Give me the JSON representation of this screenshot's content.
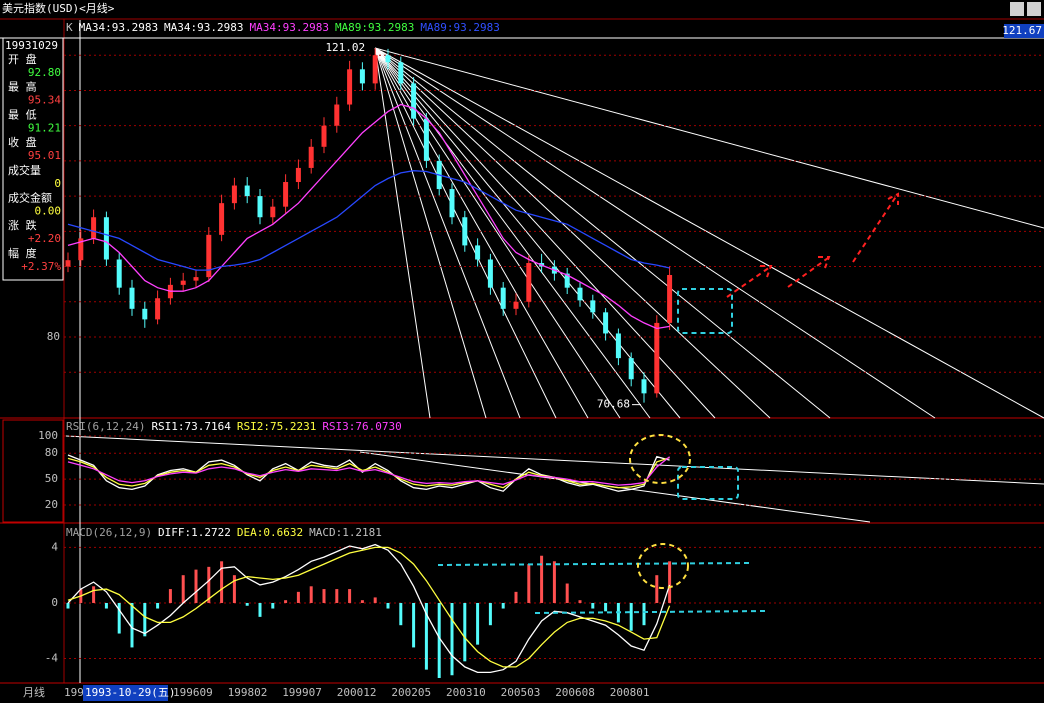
{
  "window": {
    "title": "美元指数(USD)<月线>"
  },
  "info_panel": {
    "date": "19931029",
    "rows": [
      {
        "label": "开 盘",
        "value": "92.80",
        "color": "#40ff40"
      },
      {
        "label": "最 高",
        "value": "95.34",
        "color": "#ff4040"
      },
      {
        "label": "最 低",
        "value": "91.21",
        "color": "#40ff40"
      },
      {
        "label": "收 盘",
        "value": "95.01",
        "color": "#ff4040"
      },
      {
        "label": "成交量",
        "value": "0",
        "color": "#ffff40"
      },
      {
        "label": "成交金额",
        "value": "0.00",
        "color": "#ffff40"
      },
      {
        "label": "涨 跌",
        "value": "+2.20",
        "color": "#ff4040"
      },
      {
        "label": "幅 度",
        "value": "+2.37%",
        "color": "#ff4040"
      }
    ]
  },
  "price_panel": {
    "type": "candlestick",
    "ylim": [
      68.5,
      125
    ],
    "yticks": [
      80
    ],
    "grid_levels": [
      75,
      85,
      90,
      95,
      100,
      105,
      110,
      115,
      120
    ],
    "up_color": "#ff3232",
    "down_color": "#54fcfc",
    "legend": [
      {
        "text": "K",
        "color": "#c0c0c0"
      },
      {
        "text": "MA34:93.2983",
        "color": "#ffffff"
      },
      {
        "text": "MA34:93.2983",
        "color": "#ffffff"
      },
      {
        "text": "MA34:93.2983",
        "color": "#ff40ff"
      },
      {
        "text": "MA89:93.2983",
        "color": "#40ff40"
      },
      {
        "text": "MA89:93.2983",
        "color": "#3050ff"
      }
    ],
    "current_label": "121.67",
    "high_label": "121.02",
    "low_label": "70.68",
    "ohlc": [
      [
        90.0,
        92.0,
        89.2,
        90.9
      ],
      [
        90.9,
        95.2,
        90.0,
        94
      ],
      [
        94,
        98.1,
        93.2,
        97
      ],
      [
        97,
        97.8,
        90.1,
        91
      ],
      [
        91,
        91.9,
        86.0,
        87
      ],
      [
        87,
        88.1,
        83.0,
        84
      ],
      [
        84,
        85.0,
        81.3,
        82.5
      ],
      [
        82.5,
        86.6,
        81.8,
        85.5
      ],
      [
        85.5,
        88.4,
        84.6,
        87.4
      ],
      [
        87.4,
        89.1,
        86.5,
        88
      ],
      [
        88,
        89.6,
        87.0,
        88.5
      ],
      [
        88.5,
        95.6,
        87.8,
        94.5
      ],
      [
        94.5,
        100.2,
        93.6,
        99
      ],
      [
        99,
        102.6,
        98.1,
        101.5
      ],
      [
        101.5,
        102.7,
        99.0,
        100
      ],
      [
        100,
        101.0,
        96.0,
        97
      ],
      [
        97,
        99.6,
        96.1,
        98.5
      ],
      [
        98.5,
        103.1,
        97.6,
        102
      ],
      [
        102,
        105.2,
        101.0,
        104
      ],
      [
        104,
        108.1,
        103.2,
        107
      ],
      [
        107,
        111.2,
        106.1,
        110
      ],
      [
        110,
        114.1,
        109.0,
        113
      ],
      [
        113,
        119.2,
        112.1,
        118
      ],
      [
        118,
        119.0,
        115.0,
        116
      ],
      [
        116,
        121.02,
        115.1,
        120
      ],
      [
        120,
        120.9,
        118.0,
        119
      ],
      [
        119,
        119.8,
        115.0,
        116
      ],
      [
        116,
        116.9,
        110.0,
        111
      ],
      [
        111,
        111.8,
        104.0,
        105
      ],
      [
        105,
        105.9,
        100.1,
        101
      ],
      [
        101,
        101.8,
        96.0,
        97
      ],
      [
        97,
        97.9,
        92.1,
        93
      ],
      [
        93,
        94.0,
        90.0,
        91
      ],
      [
        91,
        91.8,
        86.0,
        87
      ],
      [
        87,
        87.8,
        83.0,
        84
      ],
      [
        84,
        86.2,
        83.1,
        85
      ],
      [
        85,
        91.6,
        84.2,
        90.5
      ],
      [
        90.5,
        91.8,
        89.1,
        90
      ],
      [
        90,
        90.9,
        88.0,
        89
      ],
      [
        89,
        89.8,
        86.1,
        87
      ],
      [
        87,
        87.7,
        84.3,
        85.2
      ],
      [
        85.2,
        86.0,
        82.6,
        83.5
      ],
      [
        83.5,
        84.1,
        79.5,
        80.5
      ],
      [
        80.5,
        81.2,
        76.0,
        77
      ],
      [
        77,
        77.8,
        73.0,
        74
      ],
      [
        74,
        75.0,
        70.68,
        72
      ],
      [
        72,
        83.1,
        71.4,
        82
      ],
      [
        82,
        90.0,
        81.0,
        88.8
      ]
    ],
    "lines": [
      {
        "color": "#ff40ff",
        "values": [
          93,
          93.5,
          94,
          93.5,
          92,
          90,
          88,
          87,
          86.5,
          86.5,
          87,
          88,
          90,
          92,
          94,
          95,
          96,
          97.5,
          99,
          101,
          103,
          105,
          107,
          109,
          110.5,
          112,
          113,
          112.5,
          111,
          109,
          106,
          103,
          100,
          97,
          94,
          92,
          91,
          90.2,
          89.5,
          88.8,
          87.8,
          86.8,
          85.8,
          84.5,
          83,
          82,
          81.2,
          81.5
        ]
      },
      {
        "color": "#2848ff",
        "values": [
          96,
          95.5,
          95,
          94.5,
          94,
          93,
          92,
          91,
          90.5,
          90,
          89.5,
          89.5,
          90,
          90.2,
          90.5,
          91,
          92,
          93,
          94,
          95,
          96,
          97,
          98.5,
          100,
          101.5,
          102.5,
          103.3,
          103.6,
          103.5,
          103,
          102.5,
          102,
          101,
          100,
          99,
          98,
          97.5,
          97,
          96.5,
          96,
          95,
          94,
          93,
          92,
          91,
          90.5,
          90.2,
          89.8
        ]
      }
    ]
  },
  "rsi_panel": {
    "ylim": [
      1.4,
      117.4
    ],
    "yticks": [
      20,
      50,
      80,
      100
    ],
    "title": "RSI(6,12,24)",
    "series": [
      {
        "label": "RSI1:73.7164",
        "color": "#ffffff",
        "values": [
          78,
          72,
          66,
          48,
          40,
          38,
          42,
          55,
          60,
          62,
          58,
          70,
          72,
          66,
          55,
          48,
          62,
          68,
          60,
          70,
          66,
          64,
          72,
          58,
          68,
          60,
          48,
          40,
          38,
          42,
          40,
          44,
          48,
          40,
          36,
          50,
          62,
          55,
          52,
          46,
          42,
          44,
          40,
          36,
          38,
          42,
          76,
          72
        ]
      },
      {
        "label": "RSI2:75.2231",
        "color": "#ffff40",
        "values": [
          74,
          70,
          64,
          52,
          44,
          42,
          45,
          54,
          58,
          60,
          58,
          66,
          68,
          64,
          56,
          52,
          60,
          64,
          60,
          66,
          64,
          62,
          68,
          60,
          64,
          58,
          50,
          44,
          42,
          44,
          43,
          46,
          48,
          44,
          40,
          50,
          58,
          54,
          52,
          48,
          44,
          45,
          42,
          40,
          41,
          44,
          70,
          75
        ]
      },
      {
        "label": "RSI3:76.0730",
        "color": "#ff40ff",
        "values": [
          70,
          66,
          62,
          55,
          48,
          46,
          48,
          53,
          56,
          58,
          57,
          62,
          64,
          62,
          57,
          54,
          58,
          61,
          59,
          62,
          61,
          60,
          63,
          59,
          61,
          57,
          52,
          47,
          45,
          46,
          45,
          47,
          48,
          46,
          44,
          49,
          55,
          53,
          52,
          50,
          47,
          47,
          45,
          43,
          44,
          46,
          64,
          76
        ]
      }
    ]
  },
  "macd_panel": {
    "ylim": [
      -5.76,
      5.54
    ],
    "yticks": [
      4,
      0,
      -4
    ],
    "title": "MACD(26,12,9)",
    "series": [
      {
        "label": "DIFF:1.2722",
        "color": "#ffffff",
        "values": [
          0,
          1.0,
          1.5,
          0.8,
          -0.5,
          -1.8,
          -2.2,
          -1.6,
          -0.9,
          0,
          0.8,
          1.6,
          2.5,
          2.6,
          1.8,
          1.3,
          1.5,
          1.9,
          2.4,
          3.0,
          3.3,
          3.7,
          4.1,
          3.9,
          4.2,
          3.8,
          2.8,
          1.2,
          -0.8,
          -2.5,
          -3.8,
          -4.6,
          -5.0,
          -5.0,
          -4.8,
          -4.2,
          -2.6,
          -1.3,
          -0.6,
          -0.7,
          -1.0,
          -1.3,
          -1.6,
          -2.3,
          -3.1,
          -3.4,
          -1.5,
          1.3
        ]
      },
      {
        "label": "DEA:0.6632",
        "color": "#ffff40",
        "values": [
          0.2,
          0.5,
          0.9,
          1.0,
          0.6,
          -0.2,
          -1.0,
          -1.4,
          -1.4,
          -1.0,
          -0.4,
          0.3,
          1.0,
          1.6,
          1.9,
          1.8,
          1.7,
          1.8,
          2.0,
          2.4,
          2.8,
          3.2,
          3.6,
          3.8,
          4.0,
          4.0,
          3.6,
          2.8,
          1.6,
          0.2,
          -1.2,
          -2.5,
          -3.5,
          -4.2,
          -4.6,
          -4.6,
          -4.0,
          -3.0,
          -2.1,
          -1.4,
          -1.1,
          -1.1,
          -1.3,
          -1.6,
          -2.1,
          -2.6,
          -2.5,
          -0.2
        ]
      }
    ],
    "histogram": {
      "label": "MACD:1.2181",
      "color": "#c0c0c0",
      "up_color": "#ff5050",
      "down_color": "#54fcfc",
      "values": [
        -0.4,
        1.0,
        1.2,
        -0.4,
        -2.2,
        -3.2,
        -2.4,
        -0.4,
        1.0,
        2.0,
        2.4,
        2.6,
        3.0,
        2.0,
        -0.2,
        -1.0,
        -0.4,
        0.2,
        0.8,
        1.2,
        1.0,
        1.0,
        1.0,
        0.2,
        0.4,
        -0.4,
        -1.6,
        -3.2,
        -4.8,
        -5.4,
        -5.2,
        -4.2,
        -3.0,
        -1.6,
        -0.4,
        0.8,
        2.8,
        3.4,
        3.0,
        1.4,
        0.2,
        -0.4,
        -0.6,
        -1.4,
        -2.0,
        -1.6,
        2.0,
        3.0
      ]
    }
  },
  "time_axis": {
    "period": "月线",
    "first": "199",
    "cursor_date": "1993-10-29(五)",
    "labels": [
      "199609",
      "199802",
      "199907",
      "200012",
      "200205",
      "200310",
      "200503",
      "200608",
      "200801"
    ]
  }
}
